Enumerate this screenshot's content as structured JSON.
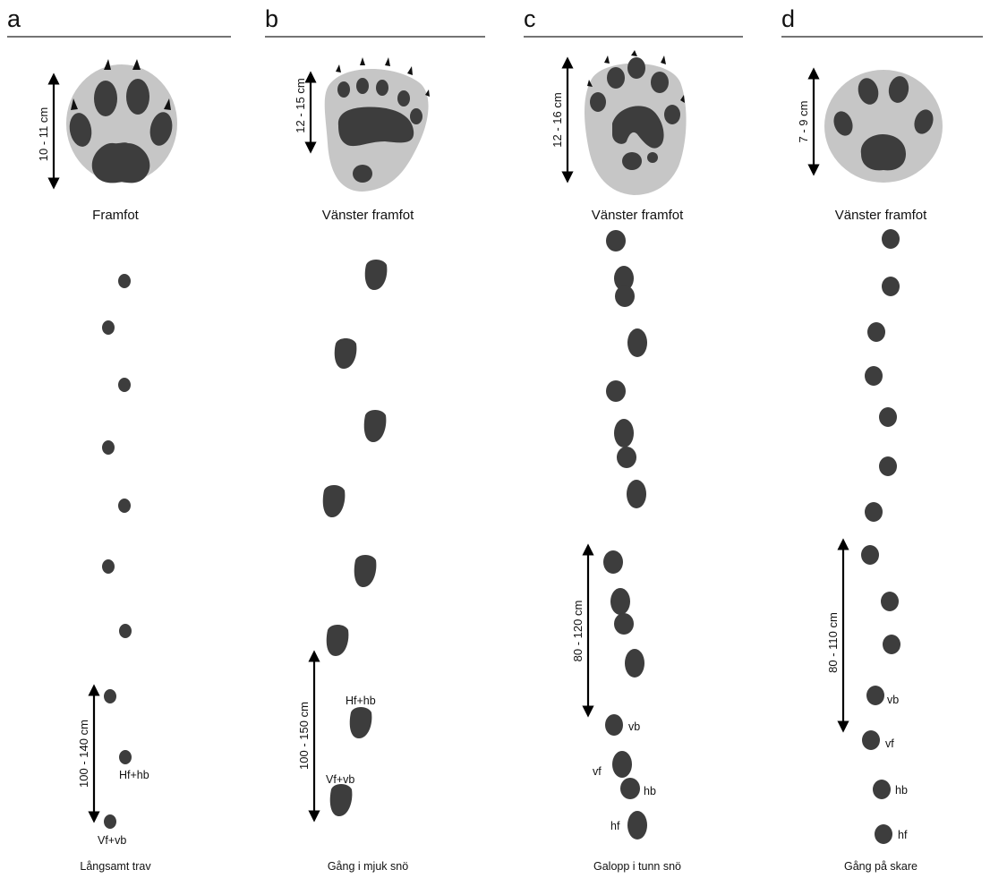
{
  "panels": [
    {
      "letter": "a",
      "caption": "Framfot",
      "scale": "10 - 11 cm",
      "stride": "100 - 140 cm",
      "gait": "Långsamt trav",
      "notes": [
        "Hf+hb",
        "Vf+vb"
      ]
    },
    {
      "letter": "b",
      "caption": "Vänster framfot",
      "scale": "12 - 15 cm",
      "stride": "100 - 150 cm",
      "gait": "Gång i mjuk snö",
      "notes": [
        "Hf+hb",
        "Vf+vb"
      ]
    },
    {
      "letter": "c",
      "caption": "Vänster framfot",
      "scale": "12 - 16 cm",
      "stride": "80 - 120 cm",
      "gait": "Galopp i tunn snö",
      "notes": [
        "vb",
        "vf",
        "hb",
        "hf"
      ]
    },
    {
      "letter": "d",
      "caption": "Vänster framfot",
      "scale": "7 - 9 cm",
      "stride": "80 - 110 cm",
      "gait": "Gång på skare",
      "notes": [
        "vb",
        "vf",
        "hb",
        "hf"
      ]
    }
  ],
  "colors": {
    "pad": "#3d3d3d",
    "paw_background": "#c6c6c6",
    "claw": "#111111"
  }
}
